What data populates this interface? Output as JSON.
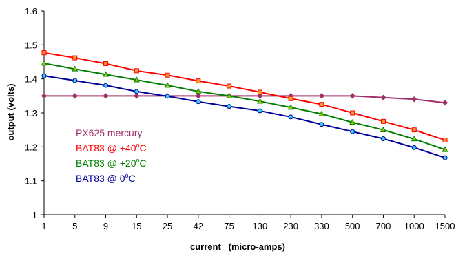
{
  "chart_data": {
    "type": "line",
    "title": "",
    "xlabel": "current   (micro-amps)",
    "ylabel": "output  (volts)",
    "categories": [
      "1",
      "5",
      "9",
      "15",
      "25",
      "42",
      "75",
      "130",
      "230",
      "330",
      "500",
      "700",
      "1000",
      "1500"
    ],
    "ylim": [
      1,
      1.6
    ],
    "yticks": [
      "1",
      "1.1",
      "1.2",
      "1.3",
      "1.4",
      "1.5",
      "1.6"
    ],
    "grid": false,
    "legend_position": "lower-left, inside plot",
    "series": [
      {
        "name": "PX625 mercury",
        "color": "#a0306a",
        "marker": "diamond",
        "values": [
          1.35,
          1.35,
          1.35,
          1.35,
          1.35,
          1.35,
          1.35,
          1.35,
          1.35,
          1.35,
          1.35,
          1.345,
          1.34,
          1.33
        ]
      },
      {
        "name": "BAT83 @ +40°C",
        "legend_prefix": "BAT83 @ +40",
        "legend_sup": "o",
        "legend_suffix": "C",
        "color": "#ff0000",
        "marker": "square",
        "marker_fill": "#ff9933",
        "values": [
          1.477,
          1.462,
          1.445,
          1.424,
          1.411,
          1.394,
          1.379,
          1.361,
          1.342,
          1.325,
          1.3,
          1.275,
          1.25,
          1.22
        ]
      },
      {
        "name": "BAT83 @ +20°C",
        "legend_prefix": "BAT83 @ +20",
        "legend_sup": "o",
        "legend_suffix": "C",
        "color": "#008000",
        "marker": "triangle",
        "marker_fill": "#99cc00",
        "values": [
          1.446,
          1.429,
          1.413,
          1.397,
          1.381,
          1.363,
          1.35,
          1.334,
          1.316,
          1.297,
          1.272,
          1.25,
          1.223,
          1.192
        ]
      },
      {
        "name": "BAT83 @ 0°C",
        "legend_prefix": "BAT83 @     0",
        "legend_sup": "o",
        "legend_suffix": "C",
        "color": "#000099",
        "marker": "circle",
        "marker_fill": "#33ccff",
        "values": [
          1.409,
          1.395,
          1.381,
          1.363,
          1.349,
          1.333,
          1.319,
          1.306,
          1.288,
          1.266,
          1.245,
          1.224,
          1.198,
          1.168
        ]
      }
    ]
  }
}
